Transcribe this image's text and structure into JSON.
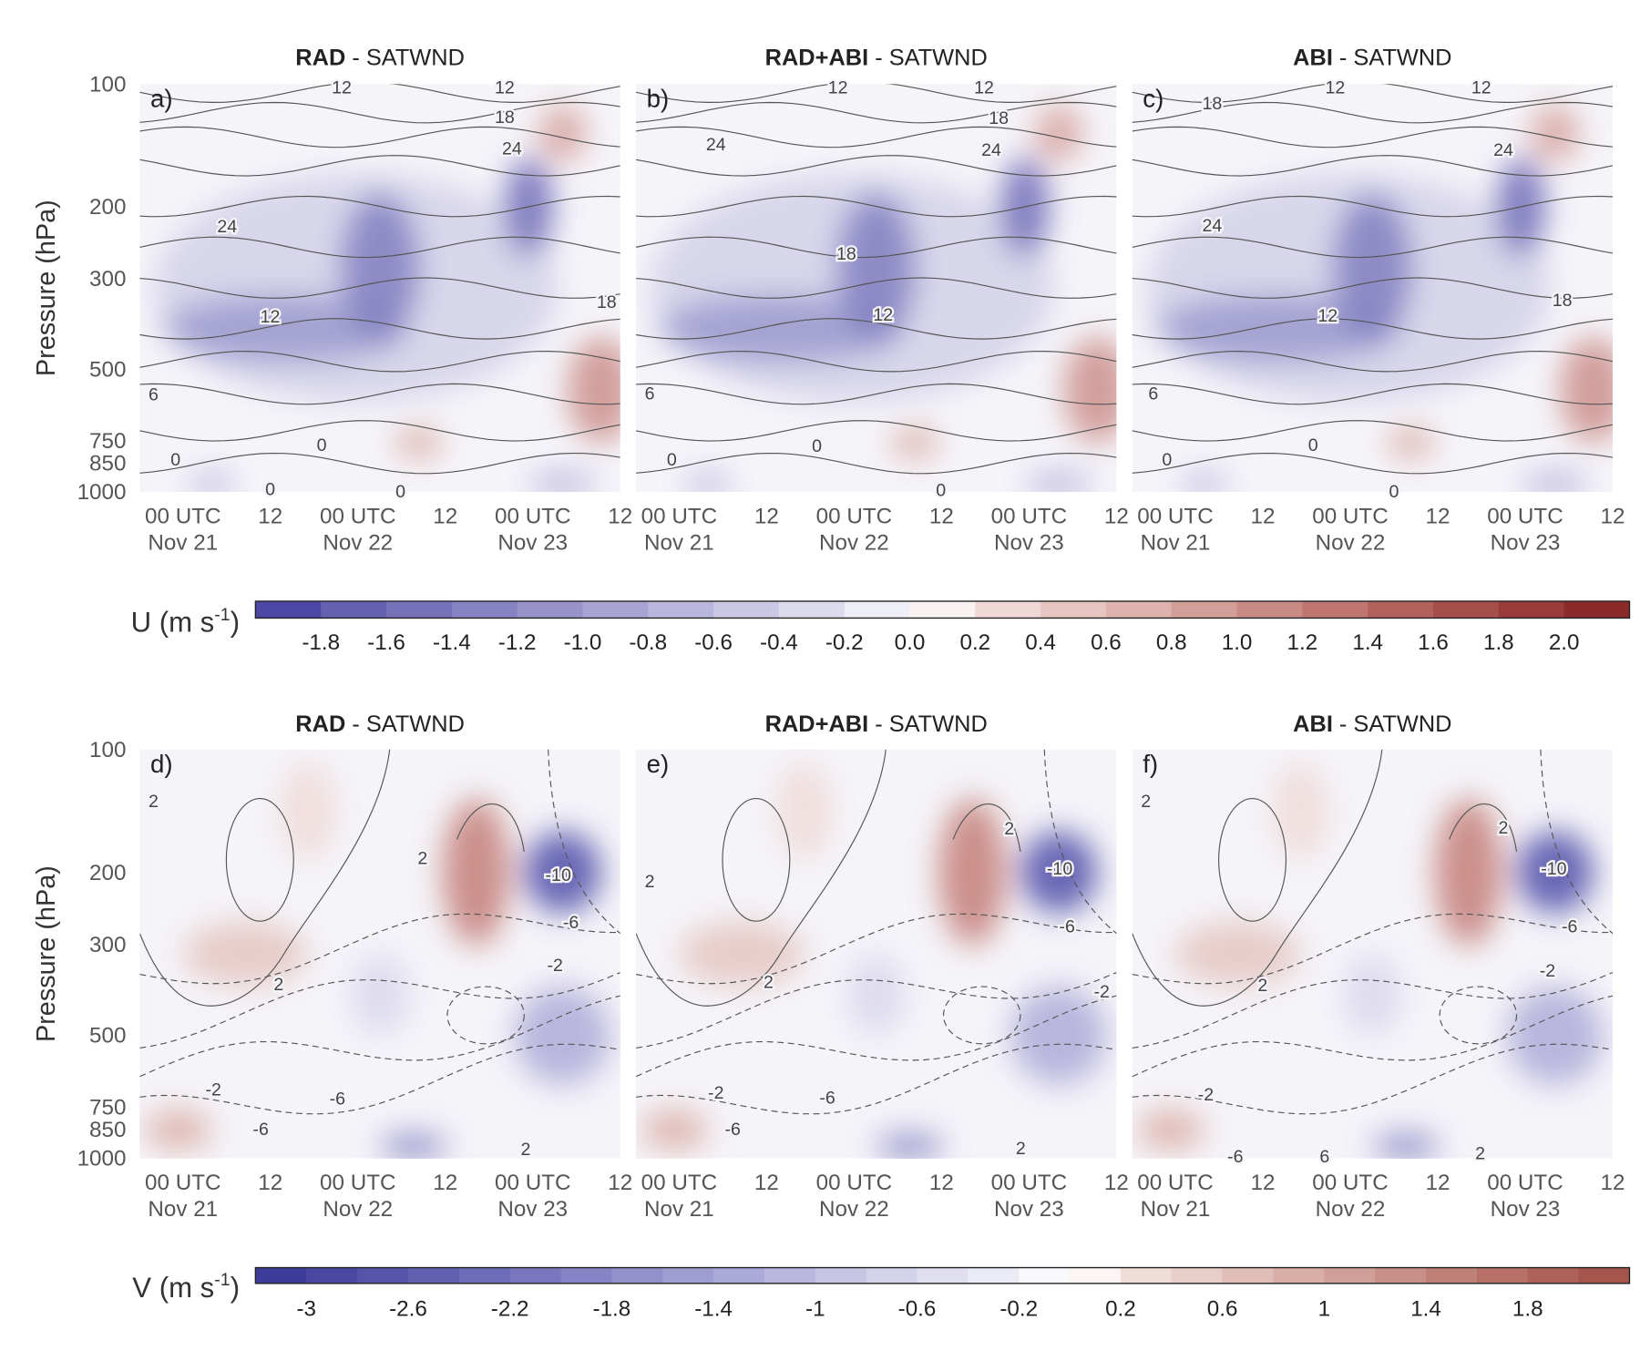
{
  "chart_data": [
    {
      "type": "contour",
      "panel_label": "a)",
      "title_bold": "RAD",
      "title_rest": " - SATWND",
      "ylabel": "Pressure (hPa)",
      "ylim": [
        1000,
        100
      ],
      "log_y": true,
      "yticks": [
        100,
        200,
        300,
        500,
        750,
        850,
        1000
      ],
      "x_categories": [
        [
          "00 UTC",
          "Nov 21"
        ],
        [
          "12"
        ],
        [
          "00 UTC",
          "Nov 22"
        ],
        [
          "12"
        ],
        [
          "00 UTC",
          "Nov 23"
        ],
        [
          "12"
        ]
      ],
      "contour_labels": [
        12,
        12,
        18,
        24,
        24,
        12,
        18,
        6,
        0,
        0,
        0,
        0
      ]
    },
    {
      "type": "contour",
      "panel_label": "b)",
      "title_bold": "RAD+ABI",
      "title_rest": " - SATWND",
      "ylim": [
        1000,
        100
      ],
      "log_y": true,
      "x_categories": [
        [
          "00 UTC",
          "Nov 21"
        ],
        [
          "12"
        ],
        [
          "00 UTC",
          "Nov 22"
        ],
        [
          "12"
        ],
        [
          "00 UTC",
          "Nov 23"
        ],
        [
          "12"
        ]
      ],
      "contour_labels": [
        12,
        12,
        18,
        24,
        24,
        18,
        12,
        6,
        0,
        0,
        0
      ]
    },
    {
      "type": "contour",
      "panel_label": "c)",
      "title_bold": "ABI",
      "title_rest": " - SATWND",
      "ylim": [
        1000,
        100
      ],
      "log_y": true,
      "x_categories": [
        [
          "00 UTC",
          "Nov 21"
        ],
        [
          "12"
        ],
        [
          "00 UTC",
          "Nov 22"
        ],
        [
          "12"
        ],
        [
          "00 UTC",
          "Nov 23"
        ],
        [
          "12"
        ]
      ],
      "contour_labels": [
        18,
        12,
        12,
        24,
        24,
        12,
        18,
        6,
        0,
        0,
        0
      ]
    },
    {
      "type": "colorbar",
      "label": "U (m s",
      "label_sup": "-1",
      "label_end": ")",
      "lim": [
        -2.0,
        2.2
      ],
      "ticks": [
        -1.8,
        -1.6,
        -1.4,
        -1.2,
        {
          "value": -1,
          "label": "-1.0"
        },
        -0.8,
        -0.6,
        -0.4,
        -0.2,
        {
          "value": 0,
          "label": "0.0"
        },
        0.2,
        0.4,
        0.6,
        0.8,
        {
          "value": 1,
          "label": "1.0"
        },
        1.2,
        1.4,
        1.6,
        1.8,
        {
          "value": 2,
          "label": "2.0"
        }
      ],
      "colors": [
        "#4d48a6",
        "#6560b0",
        "#7671b9",
        "#8782c2",
        "#9793ca",
        "#a7a4d3",
        "#b8b6dc",
        "#cac8e4",
        "#dcdbed",
        "#eeeef6",
        "#f8f2f1",
        "#efd8d5",
        "#e7c6c1",
        "#deb2ad",
        "#d49e98",
        "#ca8a84",
        "#bf7570",
        "#b3615d",
        "#a64e4b",
        "#993b3a",
        "#8a2a2a"
      ]
    },
    {
      "type": "contour",
      "panel_label": "d)",
      "title_bold": "RAD",
      "title_rest": " - SATWND",
      "ylabel": "Pressure (hPa)",
      "ylim": [
        1000,
        100
      ],
      "log_y": true,
      "yticks": [
        100,
        200,
        300,
        500,
        750,
        850,
        1000
      ],
      "x_categories": [
        [
          "00 UTC",
          "Nov 21"
        ],
        [
          "12"
        ],
        [
          "00 UTC",
          "Nov 22"
        ],
        [
          "12"
        ],
        [
          "00 UTC",
          "Nov 23"
        ],
        [
          "12"
        ]
      ],
      "contour_labels": [
        2,
        2,
        -10,
        -6,
        2,
        -2,
        -2,
        -6,
        -6,
        2
      ]
    },
    {
      "type": "contour",
      "panel_label": "e)",
      "title_bold": "RAD+ABI",
      "title_rest": " - SATWND",
      "ylim": [
        1000,
        100
      ],
      "log_y": true,
      "x_categories": [
        [
          "00 UTC",
          "Nov 21"
        ],
        [
          "12"
        ],
        [
          "00 UTC",
          "Nov 22"
        ],
        [
          "12"
        ],
        [
          "00 UTC",
          "Nov 23"
        ],
        [
          "12"
        ]
      ],
      "contour_labels": [
        2,
        2,
        -10,
        -6,
        2,
        -2,
        -2,
        -6,
        -6,
        2
      ]
    },
    {
      "type": "contour",
      "panel_label": "f)",
      "title_bold": "ABI",
      "title_rest": " - SATWND",
      "ylim": [
        1000,
        100
      ],
      "log_y": true,
      "x_categories": [
        [
          "00 UTC",
          "Nov 21"
        ],
        [
          "12"
        ],
        [
          "00 UTC",
          "Nov 22"
        ],
        [
          "12"
        ],
        [
          "00 UTC",
          "Nov 23"
        ],
        [
          "12"
        ]
      ],
      "contour_labels": [
        2,
        2,
        -10,
        -6,
        2,
        -2,
        -2,
        -6,
        6,
        2
      ]
    },
    {
      "type": "colorbar",
      "label": "V (m s",
      "label_sup": "-1",
      "label_end": ")",
      "lim": [
        -3.2,
        2.2
      ],
      "ticks": [
        -3,
        -2.6,
        -2.2,
        -1.8,
        -1.4,
        -1,
        -0.6,
        -0.2,
        0.2,
        0.6,
        1,
        1.4,
        1.8
      ],
      "colors": [
        "#3e3c9a",
        "#4a47a2",
        "#5653aa",
        "#625fb1",
        "#6e6bb8",
        "#7a77bf",
        "#8683c6",
        "#9390cc",
        "#9f9dd2",
        "#acaad8",
        "#b9b7de",
        "#c6c5e4",
        "#d3d2ea",
        "#e0dfef",
        "#ebebf5",
        "#f9f9fc",
        "#fbf5f3",
        "#f0dcd8",
        "#e8cdc8",
        "#e0bdb7",
        "#d8aea7",
        "#d09f97",
        "#c89087",
        "#bf8077",
        "#b77168",
        "#ae6259",
        "#a6554c"
      ]
    }
  ]
}
